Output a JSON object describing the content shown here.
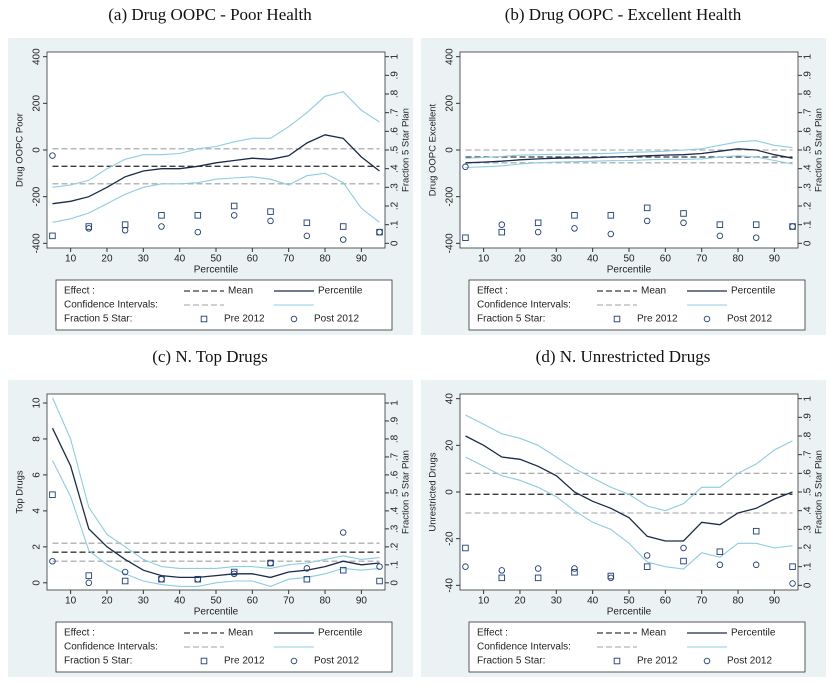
{
  "chart_data": [
    {
      "type": "line",
      "title": "(a) Drug OOPC - Poor Health",
      "ylabel": "Drug OOPC Poor",
      "y2label": "Fraction 5 Star Plan",
      "xlabel": "Percentile",
      "xlim": [
        3.5,
        96.5
      ],
      "xticks": [
        10,
        20,
        30,
        40,
        50,
        60,
        70,
        80,
        90
      ],
      "ylim": [
        -420,
        420
      ],
      "yticks": [
        -400,
        -200,
        0,
        200,
        400
      ],
      "y2lim": [
        -0.025,
        1.025
      ],
      "y2ticks": [
        0,
        {
          "value": 0.1,
          "label": ".1"
        },
        {
          "value": 0.2,
          "label": ".2"
        },
        {
          "value": 0.3,
          "label": ".3"
        },
        {
          "value": 0.4,
          "label": ".4"
        },
        {
          "value": 0.5,
          "label": ".5"
        },
        {
          "value": 0.6,
          "label": ".6"
        },
        {
          "value": 0.7,
          "label": ".7"
        },
        {
          "value": 0.8,
          "label": ".8"
        },
        {
          "value": 0.9,
          "label": ".9"
        },
        1
      ],
      "effect_label": "Effect :",
      "interval_label": "Confidence Intervals:",
      "star_label": "Fraction 5 Star:",
      "x": [
        5,
        10,
        15,
        20,
        25,
        30,
        35,
        40,
        45,
        50,
        55,
        60,
        65,
        70,
        75,
        80,
        85,
        90,
        95
      ],
      "series": [
        {
          "name": "Mean",
          "color": "#3a3a3a",
          "ci_color": "#a0a0a0",
          "dashed": true,
          "x": [
            5,
            95
          ],
          "values": [
            -70,
            -70
          ],
          "lower": [
            -145,
            -145
          ],
          "upper": [
            5,
            5
          ]
        },
        {
          "name": "Percentile",
          "color": "#1a2b4c",
          "ci_color": "#8ccde3",
          "dashed": false,
          "values": [
            -230,
            -220,
            -200,
            -160,
            -115,
            -90,
            -80,
            -80,
            -70,
            -55,
            -45,
            -35,
            -40,
            -25,
            30,
            65,
            50,
            -30,
            -90
          ],
          "lower": [
            -310,
            -295,
            -270,
            -230,
            -190,
            -160,
            -145,
            -145,
            -140,
            -125,
            -120,
            -115,
            -125,
            -150,
            -110,
            -100,
            -140,
            -250,
            -310
          ],
          "upper": [
            -160,
            -150,
            -130,
            -80,
            -40,
            -20,
            -20,
            -15,
            5,
            15,
            35,
            50,
            50,
            100,
            160,
            230,
            250,
            170,
            120
          ]
        }
      ],
      "markers": {
        "x": [
          5,
          15,
          25,
          35,
          45,
          55,
          65,
          75,
          85,
          95
        ],
        "series": [
          {
            "name": "Pre 2012",
            "marker": "square",
            "color": "#1c3f7a",
            "values": [
              0.04,
              0.09,
              0.1,
              0.15,
              0.15,
              0.2,
              0.17,
              0.11,
              0.09,
              0.06
            ]
          },
          {
            "name": "Post 2012",
            "marker": "circle",
            "color": "#1c3f7a",
            "values": [
              0.47,
              0.08,
              0.07,
              0.09,
              0.06,
              0.15,
              0.12,
              0.04,
              0.02,
              0.06
            ]
          }
        ]
      }
    },
    {
      "type": "line",
      "title": "(b) Drug OOPC - Excellent Health",
      "ylabel": "Drug OOPC Excellent",
      "y2label": "Fraction 5 Star Plan",
      "xlabel": "Percentile",
      "xlim": [
        3.5,
        96.5
      ],
      "xticks": [
        10,
        20,
        30,
        40,
        50,
        60,
        70,
        80,
        90
      ],
      "ylim": [
        -420,
        420
      ],
      "yticks": [
        -400,
        -200,
        0,
        200,
        400
      ],
      "y2lim": [
        -0.025,
        1.025
      ],
      "y2ticks": [
        0,
        {
          "value": 0.1,
          "label": ".1"
        },
        {
          "value": 0.2,
          "label": ".2"
        },
        {
          "value": 0.3,
          "label": ".3"
        },
        {
          "value": 0.4,
          "label": ".4"
        },
        {
          "value": 0.5,
          "label": ".5"
        },
        {
          "value": 0.6,
          "label": ".6"
        },
        {
          "value": 0.7,
          "label": ".7"
        },
        {
          "value": 0.8,
          "label": ".8"
        },
        {
          "value": 0.9,
          "label": ".9"
        },
        1
      ],
      "effect_label": "Effect :",
      "interval_label": "Confidence Intervals:",
      "star_label": "Fraction 5 Star:",
      "x": [
        5,
        10,
        15,
        20,
        25,
        30,
        35,
        40,
        45,
        50,
        55,
        60,
        65,
        70,
        75,
        80,
        85,
        90,
        95
      ],
      "series": [
        {
          "name": "Mean",
          "color": "#3a3a3a",
          "ci_color": "#a0a0a0",
          "dashed": true,
          "x": [
            5,
            95
          ],
          "values": [
            -30,
            -30
          ],
          "lower": [
            -55,
            -55
          ],
          "upper": [
            0,
            0
          ]
        },
        {
          "name": "Percentile",
          "color": "#1a2b4c",
          "ci_color": "#8ccde3",
          "dashed": false,
          "values": [
            -55,
            -52,
            -48,
            -42,
            -38,
            -35,
            -34,
            -33,
            -30,
            -28,
            -25,
            -22,
            -20,
            -15,
            -5,
            5,
            0,
            -20,
            -35
          ],
          "lower": [
            -75,
            -72,
            -68,
            -60,
            -55,
            -52,
            -50,
            -48,
            -46,
            -45,
            -42,
            -40,
            -40,
            -38,
            -30,
            -25,
            -30,
            -45,
            -60
          ],
          "upper": [
            -35,
            -32,
            -28,
            -22,
            -20,
            -18,
            -18,
            -16,
            -14,
            -10,
            -8,
            -5,
            0,
            5,
            20,
            35,
            40,
            20,
            10
          ]
        }
      ],
      "markers": {
        "x": [
          5,
          15,
          25,
          35,
          45,
          55,
          65,
          75,
          85,
          95
        ],
        "series": [
          {
            "name": "Pre 2012",
            "marker": "square",
            "color": "#1c3f7a",
            "values": [
              0.03,
              0.06,
              0.11,
              0.15,
              0.15,
              0.19,
              0.16,
              0.1,
              0.1,
              0.09
            ]
          },
          {
            "name": "Post 2012",
            "marker": "circle",
            "color": "#1c3f7a",
            "values": [
              0.41,
              0.1,
              0.06,
              0.08,
              0.05,
              0.12,
              0.11,
              0.04,
              0.03,
              0.09
            ]
          }
        ]
      }
    },
    {
      "type": "line",
      "title": "(c) N. Top Drugs",
      "ylabel": "Top Drugs",
      "y2label": "Fraction 5 Star Plan",
      "xlabel": "Percentile",
      "xlim": [
        3.5,
        96.5
      ],
      "xticks": [
        10,
        20,
        30,
        40,
        50,
        60,
        70,
        80,
        90
      ],
      "ylim": [
        -0.4,
        10.5
      ],
      "yticks": [
        0,
        2,
        4,
        6,
        8,
        10
      ],
      "y2lim": [
        -0.04,
        1.05
      ],
      "y2ticks": [
        0,
        {
          "value": 0.1,
          "label": ".1"
        },
        {
          "value": 0.2,
          "label": ".2"
        },
        {
          "value": 0.3,
          "label": ".3"
        },
        {
          "value": 0.4,
          "label": ".4"
        },
        {
          "value": 0.5,
          "label": ".5"
        },
        {
          "value": 0.6,
          "label": ".6"
        },
        {
          "value": 0.7,
          "label": ".7"
        },
        {
          "value": 0.8,
          "label": ".8"
        },
        {
          "value": 0.9,
          "label": ".9"
        },
        1
      ],
      "effect_label": "Effect :",
      "interval_label": "Confidence Intervals:",
      "star_label": "Fraction 5 Star:",
      "x": [
        5,
        10,
        15,
        20,
        25,
        30,
        35,
        40,
        45,
        50,
        55,
        60,
        65,
        70,
        75,
        80,
        85,
        90,
        95
      ],
      "series": [
        {
          "name": "Mean",
          "color": "#3a3a3a",
          "ci_color": "#a0a0a0",
          "dashed": true,
          "x": [
            5,
            95
          ],
          "values": [
            1.7,
            1.7
          ],
          "lower": [
            1.2,
            1.2
          ],
          "upper": [
            2.2,
            2.2
          ]
        },
        {
          "name": "Percentile",
          "color": "#1a2b4c",
          "ci_color": "#8ccde3",
          "dashed": false,
          "values": [
            8.6,
            6.5,
            3,
            2,
            1.3,
            0.7,
            0.4,
            0.3,
            0.3,
            0.4,
            0.5,
            0.5,
            0.3,
            0.6,
            0.7,
            0.9,
            1.2,
            1,
            1.1
          ],
          "lower": [
            6.8,
            4.8,
            1.8,
            1,
            0.5,
            0.1,
            -0.1,
            -0.2,
            -0.2,
            0,
            0.1,
            0.1,
            -0.2,
            0.2,
            0.3,
            0.5,
            0.8,
            0.7,
            0.8
          ],
          "upper": [
            10.3,
            8,
            4.2,
            2.7,
            2,
            1.3,
            0.9,
            0.8,
            0.8,
            0.8,
            0.9,
            0.9,
            0.8,
            1,
            1.1,
            1.3,
            1.5,
            1.3,
            1.4
          ]
        }
      ],
      "markers": {
        "x": [
          5,
          15,
          25,
          35,
          45,
          55,
          65,
          75,
          85,
          95
        ],
        "series": [
          {
            "name": "Pre 2012",
            "marker": "square",
            "color": "#1c3f7a",
            "values": [
              0.49,
              0.04,
              0.01,
              0.02,
              0.02,
              0.06,
              0.11,
              0.02,
              0.07,
              0.01
            ]
          },
          {
            "name": "Post 2012",
            "marker": "circle",
            "color": "#1c3f7a",
            "values": [
              0.12,
              0,
              0.06,
              0.02,
              0.02,
              0.05,
              0.11,
              0.08,
              0.28,
              0.09
            ]
          }
        ]
      }
    },
    {
      "type": "line",
      "title": "(d) N. Unrestricted Drugs",
      "ylabel": "Unrestricted Drugs",
      "y2label": "Fraction 5 Star Plan",
      "xlabel": "Percentile",
      "xlim": [
        3.5,
        96.5
      ],
      "xticks": [
        10,
        20,
        30,
        40,
        50,
        60,
        70,
        80,
        90
      ],
      "ylim": [
        -42,
        42
      ],
      "yticks": [
        -40,
        -20,
        0,
        20,
        40
      ],
      "y2lim": [
        -0.025,
        1.025
      ],
      "y2ticks": [
        0,
        {
          "value": 0.1,
          "label": ".1"
        },
        {
          "value": 0.2,
          "label": ".2"
        },
        {
          "value": 0.3,
          "label": ".3"
        },
        {
          "value": 0.4,
          "label": ".4"
        },
        {
          "value": 0.5,
          "label": ".5"
        },
        {
          "value": 0.6,
          "label": ".6"
        },
        {
          "value": 0.7,
          "label": ".7"
        },
        {
          "value": 0.8,
          "label": ".8"
        },
        {
          "value": 0.9,
          "label": ".9"
        },
        1
      ],
      "effect_label": "Effect :",
      "interval_label": "Confidence Intervals:",
      "star_label": "Fraction 5 Star:",
      "x": [
        5,
        10,
        15,
        20,
        25,
        30,
        35,
        40,
        45,
        50,
        55,
        60,
        65,
        70,
        75,
        80,
        85,
        90,
        95
      ],
      "series": [
        {
          "name": "Mean",
          "color": "#3a3a3a",
          "ci_color": "#a0a0a0",
          "dashed": true,
          "x": [
            5,
            95
          ],
          "values": [
            -1,
            -1
          ],
          "lower": [
            -9,
            -9
          ],
          "upper": [
            8,
            8
          ]
        },
        {
          "name": "Percentile",
          "color": "#1a2b4c",
          "ci_color": "#8ccde3",
          "dashed": false,
          "values": [
            24,
            20,
            15,
            14,
            11,
            7,
            0,
            -4,
            -7,
            -11,
            -19,
            -21,
            -21,
            -13,
            -14,
            -9,
            -7,
            -3,
            0
          ],
          "lower": [
            15,
            11,
            7,
            5,
            2,
            -2,
            -8,
            -13,
            -16,
            -22,
            -30,
            -32,
            -33,
            -26,
            -28,
            -22,
            -22,
            -24,
            -23
          ],
          "upper": [
            33,
            29,
            25,
            23,
            20,
            15,
            10,
            6,
            2,
            -1,
            -6,
            -8,
            -5,
            2,
            2,
            8,
            12,
            18,
            22
          ]
        }
      ],
      "markers": {
        "x": [
          5,
          15,
          25,
          35,
          45,
          55,
          65,
          75,
          85,
          95
        ],
        "series": [
          {
            "name": "Pre 2012",
            "marker": "square",
            "color": "#1c3f7a",
            "values": [
              0.2,
              0.04,
              0.04,
              0.07,
              0.05,
              0.1,
              0.13,
              0.18,
              0.29,
              0.1
            ]
          },
          {
            "name": "Post 2012",
            "marker": "circle",
            "color": "#1c3f7a",
            "values": [
              0.1,
              0.08,
              0.09,
              0.09,
              0.04,
              0.16,
              0.2,
              0.11,
              0.11,
              0.01
            ]
          }
        ]
      }
    }
  ]
}
